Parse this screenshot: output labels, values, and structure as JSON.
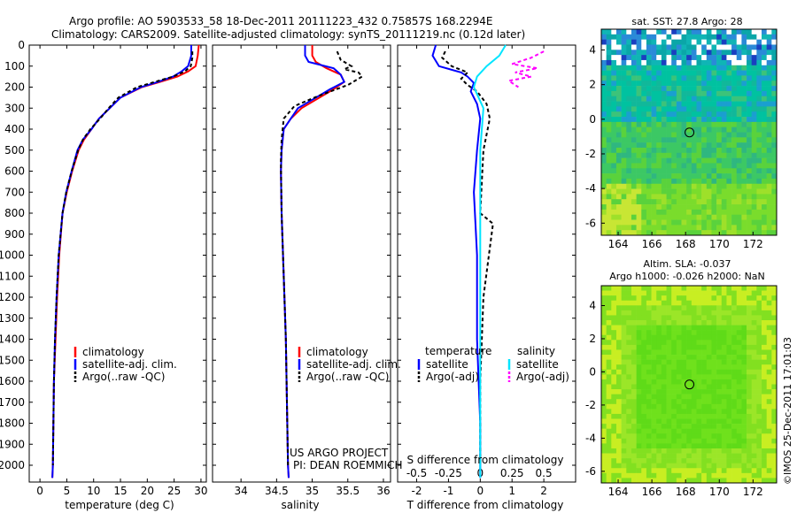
{
  "header": {
    "line1": "Argo profile: AO 5903533_58 18-Dec-2011 20111223_432 0.75857S 168.2294E",
    "line2": "Climatology: CARS2009. Satellite-adjusted climatology: synTS_20111219.nc (0.12d later)"
  },
  "colors": {
    "climatology": "#ff0000",
    "satellite": "#0000ff",
    "argo": "#000000",
    "salinity_satellite": "#00e5ff",
    "salinity_argo": "#ff00ff",
    "sst_cold": "#00c2a0",
    "sla_field": "#6fe11c"
  },
  "depth_axis": {
    "ticks": [
      0,
      100,
      200,
      300,
      400,
      500,
      600,
      700,
      800,
      900,
      1000,
      1100,
      1200,
      1300,
      1400,
      1500,
      1600,
      1700,
      1800,
      1900,
      2000
    ],
    "range": [
      0,
      2080
    ]
  },
  "panels": {
    "temperature": {
      "xlabel": "temperature (deg C)",
      "xlim": [
        -2,
        31
      ],
      "xticks": [
        0,
        5,
        10,
        15,
        20,
        25,
        30
      ],
      "legend": [
        "climatology",
        "satellite-adj. clim.",
        "Argo(..raw -QC)"
      ]
    },
    "salinity": {
      "xlabel": "salinity",
      "xlim": [
        33.6,
        36.1
      ],
      "xticks": [
        "34",
        "34.5",
        "35",
        "35.5",
        "36"
      ],
      "xtick_values": [
        34,
        34.5,
        35,
        35.5,
        36
      ],
      "legend": [
        "climatology",
        "satellite-adj. clim.",
        "Argo(..raw -QC)"
      ],
      "credit1": "US ARGO PROJECT",
      "credit2": "PI: DEAN ROEMMICH"
    },
    "difference": {
      "xlabel": "T difference from climatology",
      "top_label": "S difference from climatology",
      "xlim": [
        -2.6,
        3.0
      ],
      "xticks": [
        "-2",
        "-1",
        "0",
        "1",
        "2"
      ],
      "xtick_values": [
        -2,
        -1,
        0,
        1,
        2
      ],
      "s_ticks": [
        "-0.5",
        "-0.25",
        "0",
        "0.25",
        "0.5"
      ],
      "s_tick_values": [
        -2,
        -1,
        0,
        1,
        2
      ],
      "legend_temp_title": "temperature",
      "legend_sal_title": "salinity",
      "legend_temp": [
        "satellite",
        "Argo(-adj)"
      ],
      "legend_sal": [
        "satellite",
        "Argo(-adj)"
      ]
    },
    "sst_map": {
      "title": "sat. SST: 27.8 Argo: 28",
      "xticks": [
        "164",
        "166",
        "168",
        "170",
        "172"
      ],
      "xtick_values": [
        164,
        166,
        168,
        170,
        172
      ],
      "yticks": [
        "4",
        "2",
        "0",
        "-2",
        "-4",
        "-6"
      ],
      "ytick_values": [
        4,
        2,
        0,
        -2,
        -4,
        -6
      ],
      "xlim": [
        163,
        173.4
      ],
      "ylim": [
        -6.7,
        5.2
      ],
      "float_position": [
        168.23,
        -0.76
      ]
    },
    "sla_map": {
      "title1": "Altim. SLA: -0.037",
      "title2": "Argo h1000: -0.026 h2000: NaN",
      "xticks": [
        "164",
        "166",
        "168",
        "170",
        "172"
      ],
      "xtick_values": [
        164,
        166,
        168,
        170,
        172
      ],
      "yticks": [
        "4",
        "2",
        "0",
        "-2",
        "-4",
        "-6"
      ],
      "ytick_values": [
        4,
        2,
        0,
        -2,
        -4,
        -6
      ],
      "xlim": [
        163,
        173.4
      ],
      "ylim": [
        -6.7,
        5.2
      ],
      "float_position": [
        168.23,
        -0.76
      ]
    }
  },
  "side_caption": "©IMOS 25-Dec-2011 17:01:03",
  "chart_data": [
    {
      "type": "line",
      "panel": "temperature",
      "ylabel": "",
      "xlabel": "temperature (deg C)",
      "series": [
        {
          "name": "climatology",
          "x": [
            29.6,
            29.4,
            29.0,
            27.6,
            25.6,
            22.4,
            19.0,
            15.0,
            13.0,
            11.0,
            9.6,
            8.2,
            7.2,
            6.0,
            5.0,
            4.2,
            3.6,
            3.2,
            2.9,
            2.6,
            2.5,
            2.4,
            2.3
          ],
          "y": [
            0,
            50,
            100,
            125,
            150,
            175,
            200,
            250,
            300,
            350,
            400,
            450,
            500,
            600,
            700,
            800,
            1000,
            1200,
            1400,
            1600,
            1800,
            2000,
            2060
          ]
        },
        {
          "name": "satellite-adj. clim.",
          "x": [
            28.2,
            28.2,
            27.6,
            26.4,
            24.8,
            22.0,
            18.8,
            15.0,
            13.0,
            11.0,
            9.6,
            8.0,
            7.0,
            5.9,
            4.9,
            4.2,
            3.5,
            3.1,
            2.8,
            2.6,
            2.5,
            2.4,
            2.3
          ],
          "y": [
            0,
            50,
            100,
            125,
            150,
            175,
            200,
            250,
            300,
            350,
            400,
            450,
            500,
            600,
            700,
            800,
            1000,
            1200,
            1400,
            1600,
            1800,
            2000,
            2060
          ]
        },
        {
          "name": "Argo(..raw -QC)",
          "x": [
            28.4,
            28.4,
            28.1,
            27.0,
            24.8,
            21.4,
            18.1,
            14.6,
            12.8,
            11.2,
            9.4,
            8.0,
            7.1,
            5.9,
            4.9,
            4.2,
            3.5,
            3.1,
            2.8,
            2.6,
            2.5,
            2.4
          ],
          "y": [
            30,
            60,
            100,
            125,
            150,
            175,
            200,
            250,
            300,
            350,
            400,
            450,
            500,
            600,
            700,
            800,
            1000,
            1200,
            1400,
            1600,
            1800,
            2000
          ]
        }
      ]
    },
    {
      "type": "line",
      "panel": "salinity",
      "xlabel": "salinity",
      "series": [
        {
          "name": "climatology",
          "x": [
            35.0,
            35.0,
            35.05,
            35.2,
            35.4,
            35.45,
            35.3,
            35.05,
            34.85,
            34.7,
            34.6,
            34.57,
            34.56,
            34.57,
            34.59,
            34.61,
            34.63,
            34.64,
            34.65,
            34.66,
            34.67
          ],
          "y": [
            0,
            50,
            80,
            110,
            140,
            175,
            210,
            260,
            300,
            350,
            400,
            500,
            600,
            800,
            1000,
            1200,
            1400,
            1600,
            1800,
            2000,
            2060
          ]
        },
        {
          "name": "satellite-adj. clim.",
          "x": [
            34.9,
            34.9,
            34.95,
            35.3,
            35.4,
            35.45,
            35.25,
            35.0,
            34.8,
            34.7,
            34.6,
            34.57,
            34.56,
            34.57,
            34.59,
            34.61,
            34.63,
            34.64,
            34.65,
            34.66,
            34.67
          ],
          "y": [
            0,
            50,
            80,
            110,
            140,
            175,
            210,
            260,
            300,
            350,
            400,
            500,
            600,
            800,
            1000,
            1200,
            1400,
            1600,
            1800,
            2000,
            2060
          ]
        },
        {
          "name": "Argo(..raw -QC)",
          "x": [
            35.35,
            35.4,
            35.55,
            35.45,
            35.65,
            35.7,
            35.6,
            35.5,
            35.1,
            34.75,
            34.6,
            34.57,
            34.56,
            34.57,
            34.59,
            34.61,
            34.63,
            34.64,
            34.65,
            34.66
          ],
          "y": [
            30,
            70,
            100,
            115,
            130,
            150,
            170,
            190,
            240,
            290,
            350,
            450,
            550,
            800,
            1000,
            1200,
            1400,
            1600,
            1800,
            2000
          ]
        }
      ]
    },
    {
      "type": "line",
      "panel": "difference",
      "xlabel": "T difference from climatology",
      "series": [
        {
          "name": "temperature satellite",
          "x": [
            -1.4,
            -1.5,
            -1.3,
            -0.6,
            -0.4,
            -0.2,
            -0.3,
            -0.1,
            0.0,
            -0.1,
            -0.2,
            -0.1,
            -0.1,
            0.0,
            0.0
          ],
          "y": [
            0,
            50,
            100,
            130,
            150,
            180,
            220,
            280,
            350,
            500,
            700,
            1000,
            1400,
            1800,
            2060
          ]
        },
        {
          "name": "temperature Argo(-adj)",
          "x": [
            -1.1,
            -1.2,
            -0.9,
            -0.4,
            -0.6,
            -0.4,
            -0.1,
            0.2,
            0.3,
            0.1,
            0.0,
            0.4,
            0.1,
            0.0,
            0.0
          ],
          "y": [
            30,
            60,
            100,
            130,
            160,
            190,
            220,
            280,
            350,
            500,
            800,
            850,
            1200,
            1600,
            2000
          ]
        },
        {
          "name": "salinity satellite",
          "x": [
            0.8,
            0.6,
            0.2,
            -0.1,
            -0.2,
            0.1,
            0.0,
            0.0,
            0.0,
            0.0
          ],
          "y": [
            0,
            50,
            100,
            150,
            200,
            300,
            500,
            800,
            1400,
            2060
          ]
        },
        {
          "name": "salinity Argo(-adj)",
          "x": [
            2.0,
            1.6,
            1.0,
            1.8,
            1.1,
            1.6,
            0.9,
            1.2
          ],
          "y": [
            30,
            60,
            90,
            110,
            130,
            150,
            170,
            200
          ]
        }
      ]
    }
  ]
}
